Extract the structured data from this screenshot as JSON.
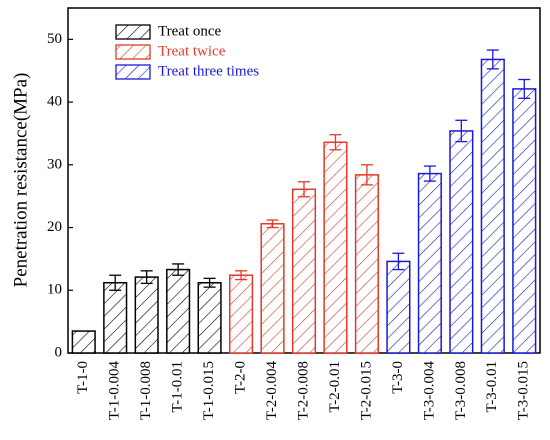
{
  "chart_data": {
    "type": "bar",
    "y_label": "Penetration resistance(MPa)",
    "categories": [
      "T-1-0",
      "T-1-0.004",
      "T-1-0.008",
      "T-1-0.01",
      "T-1-0.015",
      "T-2-0",
      "T-2-0.004",
      "T-2-0.008",
      "T-2-0.01",
      "T-2-0.015",
      "T-3-0",
      "T-3-0.004",
      "T-3-0.008",
      "T-3-0.01",
      "T-3-0.015"
    ],
    "series": [
      {
        "name": "Treat once",
        "color": "#000000",
        "values": [
          3.5,
          11.2,
          12.1,
          13.3,
          11.2,
          null,
          null,
          null,
          null,
          null,
          null,
          null,
          null,
          null,
          null
        ],
        "errors": [
          null,
          1.2,
          1.0,
          0.9,
          0.7,
          null,
          null,
          null,
          null,
          null,
          null,
          null,
          null,
          null,
          null
        ]
      },
      {
        "name": "Treat twice",
        "color": "#e03a2a",
        "values": [
          null,
          null,
          null,
          null,
          null,
          12.4,
          20.6,
          26.1,
          33.6,
          28.4,
          null,
          null,
          null,
          null,
          null
        ],
        "errors": [
          null,
          null,
          null,
          null,
          null,
          0.7,
          0.6,
          1.2,
          1.2,
          1.6,
          null,
          null,
          null,
          null,
          null
        ]
      },
      {
        "name": "Treat three times",
        "color": "#1a1ad6",
        "values": [
          null,
          null,
          null,
          null,
          null,
          null,
          null,
          null,
          null,
          null,
          14.6,
          28.6,
          35.4,
          46.8,
          42.1
        ],
        "errors": [
          null,
          null,
          null,
          null,
          null,
          null,
          null,
          null,
          null,
          null,
          1.3,
          1.2,
          1.7,
          1.5,
          1.5
        ]
      }
    ],
    "ylim": [
      0,
      55
    ],
    "yticks": [
      0,
      10,
      20,
      30,
      40,
      50
    ],
    "hatch": true,
    "legend": "upper left"
  }
}
